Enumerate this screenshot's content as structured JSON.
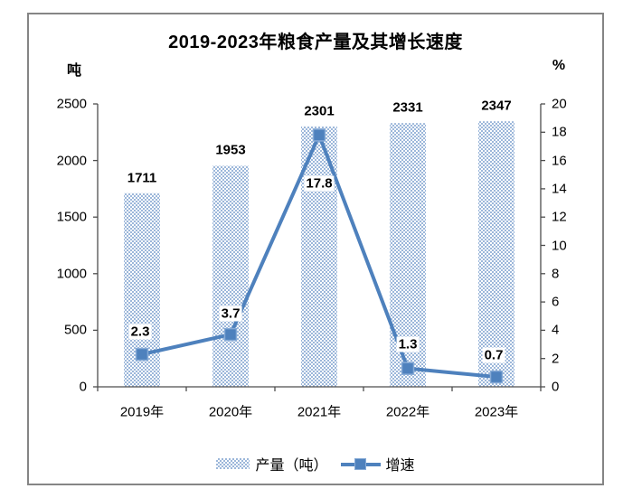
{
  "title": "2019-2023年粮食产量及其增长速度",
  "left_axis": {
    "unit": "吨",
    "min": 0,
    "max": 2500,
    "step": 500
  },
  "right_axis": {
    "unit": "%",
    "min": 0,
    "max": 20,
    "step": 2
  },
  "legend": {
    "items": [
      {
        "label": "产量（吨）",
        "symbol": "pattern-swatch"
      },
      {
        "label": "增速",
        "symbol": "line-marker"
      }
    ]
  },
  "colors": {
    "bar_pattern": "#9CB7DA",
    "line": "#4E81BD",
    "marker_border": "#86AAD6",
    "axis": "#4d4d4d",
    "frame_border": "#858585",
    "text": "#000000"
  },
  "chart_data": {
    "type": "combo_bar_line",
    "title": "2019-2023年粮食产量及其增长速度",
    "categories": [
      "2019年",
      "2020年",
      "2021年",
      "2022年",
      "2023年"
    ],
    "series": [
      {
        "name": "产量（吨）",
        "type": "bar",
        "axis": "left",
        "values": [
          1711,
          1953,
          2301,
          2331,
          2347
        ]
      },
      {
        "name": "增速",
        "type": "line",
        "axis": "right",
        "values": [
          2.3,
          3.7,
          17.8,
          1.3,
          0.7
        ]
      }
    ],
    "left_ylabel": "吨",
    "right_ylabel": "%",
    "left_ylim": [
      0,
      2500
    ],
    "right_ylim": [
      0,
      20
    ],
    "grid": false,
    "legend_position": "bottom",
    "data_labels": true
  }
}
